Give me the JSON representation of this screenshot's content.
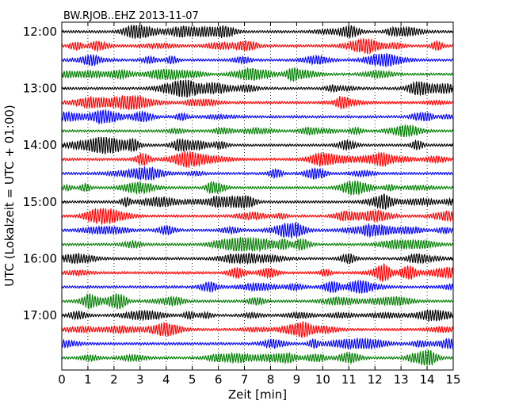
{
  "chart_data": {
    "type": "line",
    "title": "BW.RJOB..EHZ 2013-11-07",
    "xlabel": "Zeit  [min]",
    "ylabel": "UTC (Lokalzeit = UTC + 01:00)",
    "xlim": [
      0,
      15
    ],
    "x_ticks": [
      "0",
      "1",
      "2",
      "3",
      "4",
      "5",
      "6",
      "7",
      "8",
      "9",
      "10",
      "11",
      "12",
      "13",
      "14",
      "15"
    ],
    "y_ticks": [
      "12:00",
      "13:00",
      "14:00",
      "15:00",
      "16:00",
      "17:00"
    ],
    "grid_x": true,
    "row_start": "12:00",
    "row_interval_minutes": 15,
    "row_count": 24,
    "trace_colors": [
      "#000000",
      "#ff0000",
      "#0000ff",
      "#007f00"
    ]
  }
}
